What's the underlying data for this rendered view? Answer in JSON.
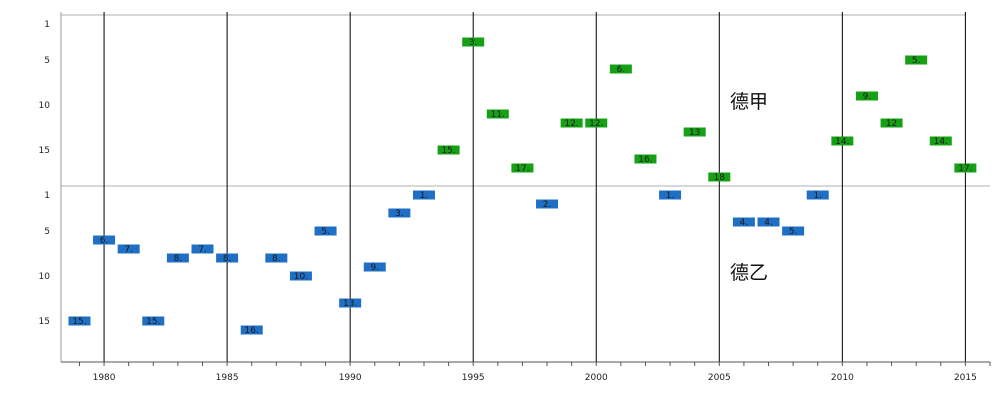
{
  "chart_data": {
    "type": "scatter",
    "xlabel": "",
    "ylabel": "",
    "xlim": [
      1978.25,
      2016
    ],
    "x_ticks": [
      1980,
      1985,
      1990,
      1995,
      2000,
      2005,
      2010,
      2015
    ],
    "y_ticks": [
      1,
      5,
      10,
      15
    ],
    "grid": "vertical every 5 years",
    "panels": [
      {
        "name": "德甲",
        "color": "#16a016",
        "ylim": [
          19,
          0
        ],
        "points": [
          {
            "x": 1995,
            "y": 3,
            "label": "3."
          },
          {
            "x": 1994,
            "y": 15,
            "label": "15."
          },
          {
            "x": 1996,
            "y": 11,
            "label": "11."
          },
          {
            "x": 1997,
            "y": 17,
            "label": "17."
          },
          {
            "x": 1999,
            "y": 12,
            "label": "12."
          },
          {
            "x": 2000,
            "y": 12,
            "label": "12."
          },
          {
            "x": 2001,
            "y": 6,
            "label": "6."
          },
          {
            "x": 2002,
            "y": 16,
            "label": "16."
          },
          {
            "x": 2004,
            "y": 13,
            "label": "13"
          },
          {
            "x": 2005,
            "y": 18,
            "label": "18"
          },
          {
            "x": 2010,
            "y": 14,
            "label": "14."
          },
          {
            "x": 2011,
            "y": 9,
            "label": "9."
          },
          {
            "x": 2012,
            "y": 12,
            "label": "12"
          },
          {
            "x": 2013,
            "y": 5,
            "label": "5."
          },
          {
            "x": 2014,
            "y": 14,
            "label": "14."
          },
          {
            "x": 2015,
            "y": 17,
            "label": "17."
          }
        ]
      },
      {
        "name": "德乙",
        "color": "#1f6fc4",
        "ylim": [
          19,
          0
        ],
        "points": [
          {
            "x": 1979,
            "y": 15,
            "label": "15."
          },
          {
            "x": 1980,
            "y": 6,
            "label": "6."
          },
          {
            "x": 1981,
            "y": 7,
            "label": "7."
          },
          {
            "x": 1982,
            "y": 15,
            "label": "15."
          },
          {
            "x": 1983,
            "y": 8,
            "label": "8."
          },
          {
            "x": 1984,
            "y": 7,
            "label": "7."
          },
          {
            "x": 1985,
            "y": 8,
            "label": "8."
          },
          {
            "x": 1986,
            "y": 16,
            "label": "16."
          },
          {
            "x": 1987,
            "y": 8,
            "label": "8."
          },
          {
            "x": 1988,
            "y": 10,
            "label": "10."
          },
          {
            "x": 1989,
            "y": 5,
            "label": "5."
          },
          {
            "x": 1990,
            "y": 13,
            "label": "13."
          },
          {
            "x": 1991,
            "y": 9,
            "label": "9."
          },
          {
            "x": 1992,
            "y": 3,
            "label": "3."
          },
          {
            "x": 1993,
            "y": 1,
            "label": "1."
          },
          {
            "x": 1998,
            "y": 2,
            "label": "2."
          },
          {
            "x": 2003,
            "y": 1,
            "label": "1."
          },
          {
            "x": 2006,
            "y": 4,
            "label": "4."
          },
          {
            "x": 2007,
            "y": 4,
            "label": "4."
          },
          {
            "x": 2008,
            "y": 5,
            "label": "5."
          },
          {
            "x": 2009,
            "y": 1,
            "label": "1."
          }
        ]
      }
    ]
  }
}
